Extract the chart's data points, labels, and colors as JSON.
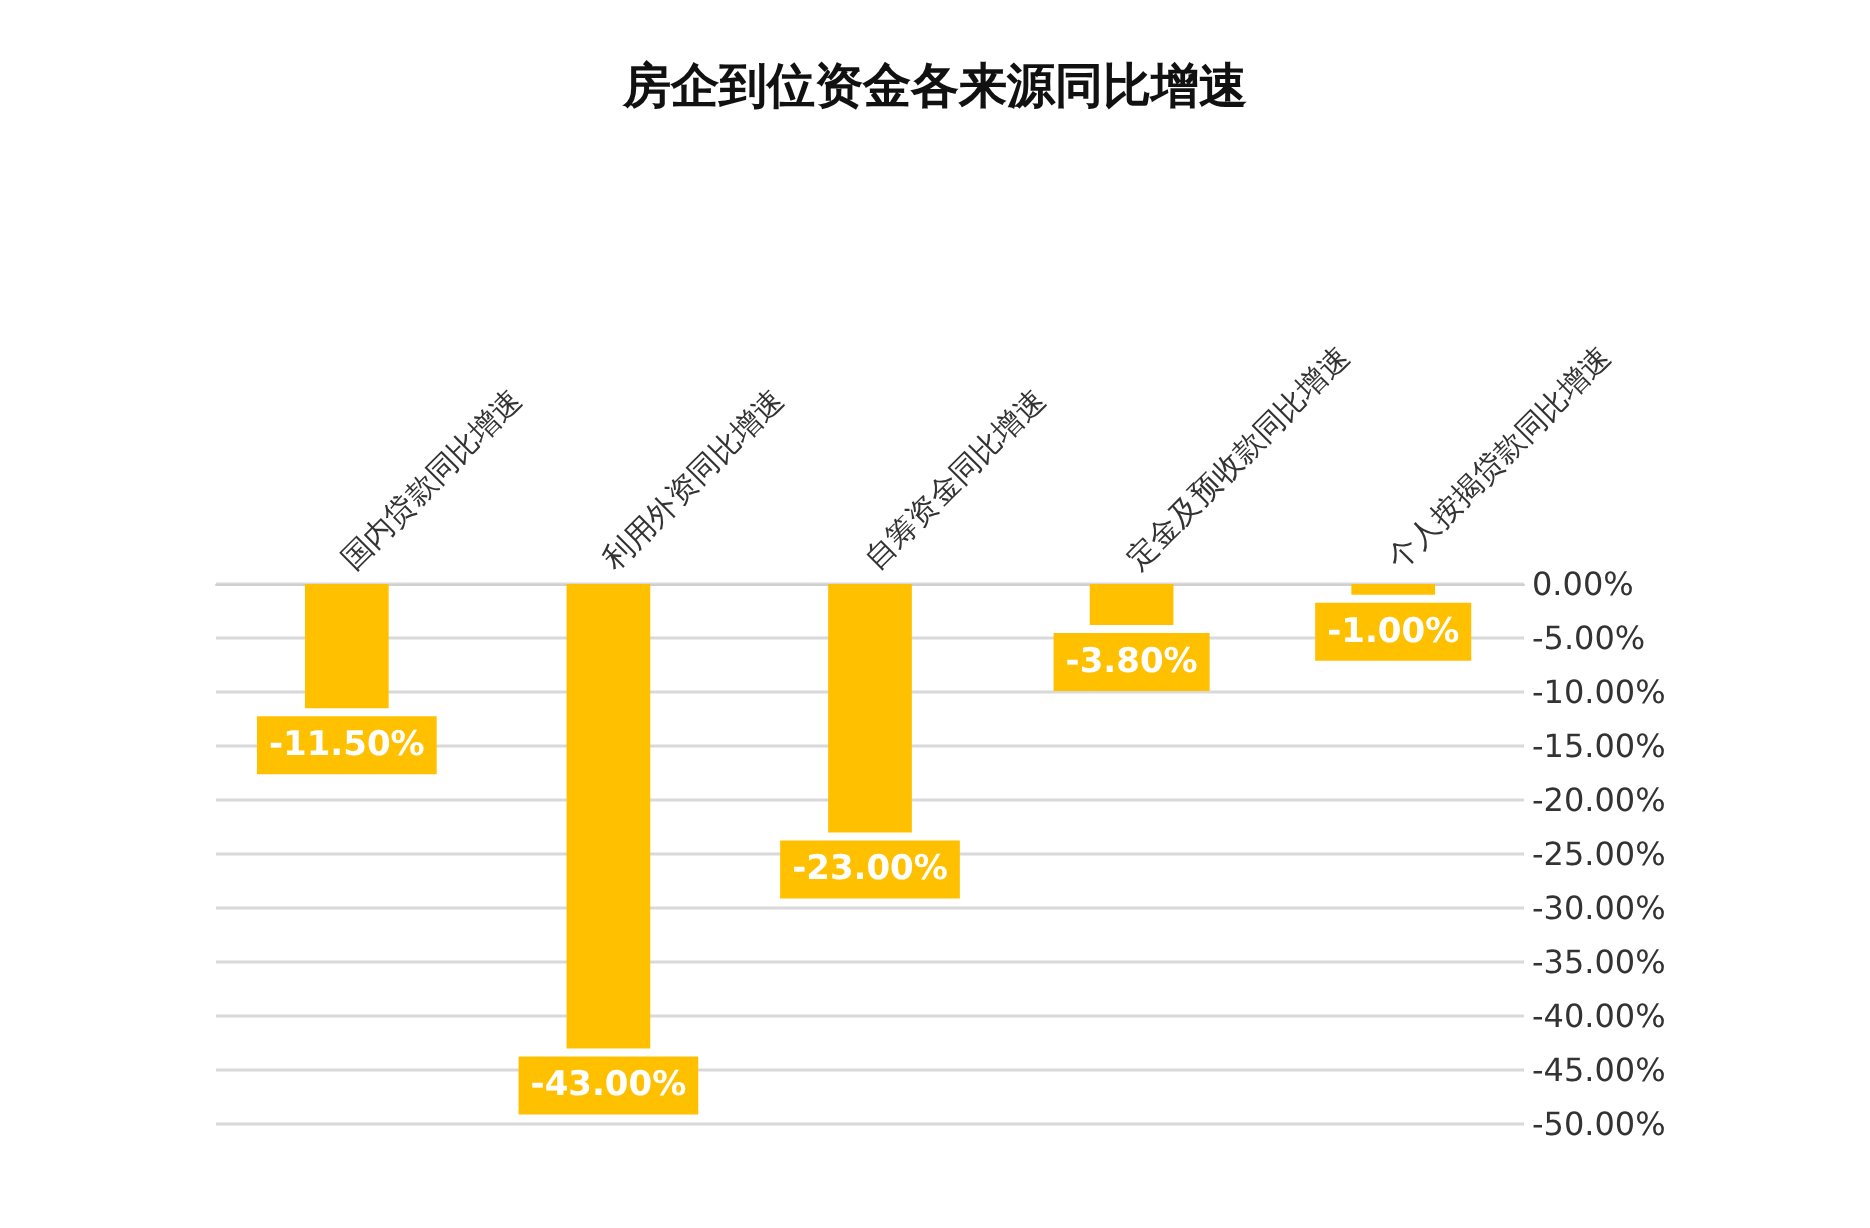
{
  "chart_data": {
    "type": "bar",
    "title": "房企到位资金各来源同比增速",
    "categories": [
      "国内贷款同比增速",
      "利用外资同比增速",
      "自筹资金同比增速",
      "定金及预收款同比增速",
      "个人按揭贷款同比增速"
    ],
    "values": [
      -11.5,
      -43,
      -23,
      -3.8,
      -1
    ],
    "value_labels": [
      "-11.50%",
      "-43.00%",
      "-23.00%",
      "-3.80%",
      "-1.00%"
    ],
    "color": "#ffc000",
    "ylim": [
      -50,
      0
    ],
    "yticks": [
      {
        "value": 0,
        "label": "0.00%"
      },
      {
        "value": -5,
        "label": "-5.00%"
      },
      {
        "value": -10,
        "label": "-10.00%"
      },
      {
        "value": -15,
        "label": "-15.00%"
      },
      {
        "value": -20,
        "label": "-20.00%"
      },
      {
        "value": -25,
        "label": "-25.00%"
      },
      {
        "value": -30,
        "label": "-30.00%"
      },
      {
        "value": -35,
        "label": "-35.00%"
      },
      {
        "value": -40,
        "label": "-40.00%"
      },
      {
        "value": -45,
        "label": "-45.00%"
      },
      {
        "value": -50,
        "label": "-50.00%"
      }
    ],
    "grid": "y"
  }
}
